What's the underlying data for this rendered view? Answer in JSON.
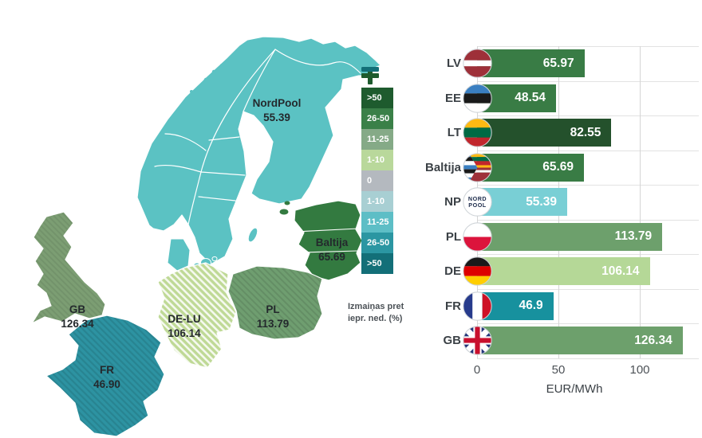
{
  "map": {
    "regions": [
      {
        "id": "nordpool",
        "label": "NordPool",
        "value": "55.39",
        "color": "#5bc2c3"
      },
      {
        "id": "baltija",
        "label": "Baltija",
        "value": "65.69",
        "color": "#337a40"
      },
      {
        "id": "pl",
        "label": "PL",
        "value": "113.79",
        "color": "#6f9e70"
      },
      {
        "id": "de-lu",
        "label": "DE-LU",
        "value": "106.14",
        "color": "#bfd996"
      },
      {
        "id": "fr",
        "label": "FR",
        "value": "46.90",
        "color": "#2d93a2"
      },
      {
        "id": "gb",
        "label": "GB",
        "value": "126.34",
        "color": "#7c9e73"
      }
    ],
    "legend": {
      "plus_icon": "plus-icon",
      "minus_icon": "minus-icon",
      "items": [
        {
          "label": ">50",
          "color": "#1e5b2e"
        },
        {
          "label": "26-50",
          "color": "#3a8048"
        },
        {
          "label": "11-25",
          "color": "#85aa87"
        },
        {
          "label": "1-10",
          "color": "#b9d89b"
        },
        {
          "label": "0",
          "color": "#b4b9bf"
        },
        {
          "label": "1-10",
          "color": "#a8cfd3"
        },
        {
          "label": "11-25",
          "color": "#5dbec6"
        },
        {
          "label": "26-50",
          "color": "#2b96a2"
        },
        {
          "label": ">50",
          "color": "#136f78"
        }
      ],
      "caption_line1": "Izmaiņas pret",
      "caption_line2": "iepr. ned. (%)"
    }
  },
  "chart_data": {
    "type": "bar",
    "orientation": "horizontal",
    "title": "",
    "xlabel": "EUR/MWh",
    "xlim": [
      0,
      139
    ],
    "xticks": [
      "0",
      "50",
      "100"
    ],
    "xtick_values": [
      0,
      50,
      100
    ],
    "grid": true,
    "categories": [
      "LV",
      "EE",
      "LT",
      "Baltija",
      "NP",
      "PL",
      "DE",
      "FR",
      "GB"
    ],
    "values": [
      65.97,
      48.54,
      82.55,
      65.69,
      55.39,
      113.79,
      106.14,
      46.9,
      126.34
    ],
    "np_logo": {
      "line1": "NORD",
      "line2": "POOL"
    },
    "rows": [
      {
        "label": "LV",
        "value": 65.97,
        "value_label": "65.97",
        "color": "#397c45",
        "flag": "lv-flag-icon"
      },
      {
        "label": "EE",
        "value": 48.54,
        "value_label": "48.54",
        "color": "#397c45",
        "flag": "ee-flag-icon"
      },
      {
        "label": "LT",
        "value": 82.55,
        "value_label": "82.55",
        "color": "#24512c",
        "flag": "lt-flag-icon"
      },
      {
        "label": "Baltija",
        "value": 65.69,
        "value_label": "65.69",
        "color": "#397c45",
        "flag": "baltic-combined-flag-icon"
      },
      {
        "label": "NP",
        "value": 55.39,
        "value_label": "55.39",
        "color": "#79cfd5",
        "flag": "nordpool-logo-icon"
      },
      {
        "label": "PL",
        "value": 113.79,
        "value_label": "113.79",
        "color": "#6da06c",
        "flag": "pl-flag-icon"
      },
      {
        "label": "DE",
        "value": 106.14,
        "value_label": "106.14",
        "color": "#b5d897",
        "flag": "de-flag-icon"
      },
      {
        "label": "FR",
        "value": 46.9,
        "value_label": "46.9",
        "color": "#17919e",
        "flag": "fr-flag-icon"
      },
      {
        "label": "GB",
        "value": 126.34,
        "value_label": "126.34",
        "color": "#6da06c",
        "flag": "gb-flag-icon"
      }
    ]
  }
}
